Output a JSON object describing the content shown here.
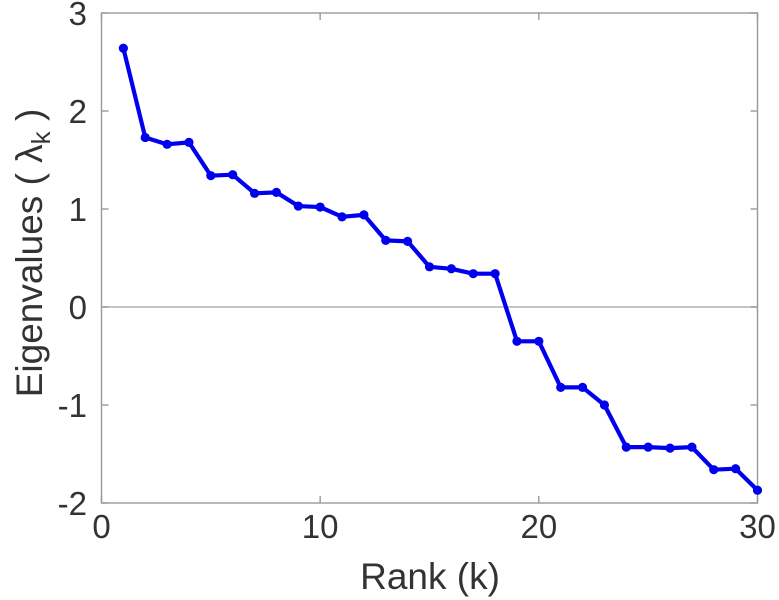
{
  "chart_data": {
    "type": "line",
    "title": "",
    "xlabel": "Rank (k)",
    "ylabel": "Eigenvalues ( λk )",
    "ylabel_parts": {
      "prefix": "Eigenvalues ( λ",
      "subscript": "k",
      "suffix": " )"
    },
    "x": [
      1,
      2,
      3,
      4,
      5,
      6,
      7,
      8,
      9,
      10,
      11,
      12,
      13,
      14,
      15,
      16,
      17,
      18,
      19,
      20,
      21,
      22,
      23,
      24,
      25,
      26,
      27,
      28,
      29,
      30
    ],
    "y": [
      2.64,
      1.73,
      1.66,
      1.68,
      1.34,
      1.35,
      1.16,
      1.17,
      1.03,
      1.02,
      0.92,
      0.94,
      0.68,
      0.67,
      0.41,
      0.39,
      0.34,
      0.34,
      -0.35,
      -0.35,
      -0.82,
      -0.82,
      -1.0,
      -1.43,
      -1.43,
      -1.44,
      -1.43,
      -1.66,
      -1.65,
      -1.87
    ],
    "xlim": [
      0,
      30
    ],
    "ylim": [
      -2,
      3
    ],
    "xticks": [
      0,
      10,
      20,
      30
    ],
    "yticks": [
      -2,
      -1,
      0,
      1,
      2,
      3
    ],
    "zero_line_y": 0,
    "grid": false,
    "legend": null,
    "marker": "circle",
    "colors": {
      "line": "#0000ee",
      "marker": "#0000ee",
      "zero_line": "#b0b0b0",
      "axis": "#999999",
      "text": "#333333",
      "background": "#ffffff"
    }
  }
}
